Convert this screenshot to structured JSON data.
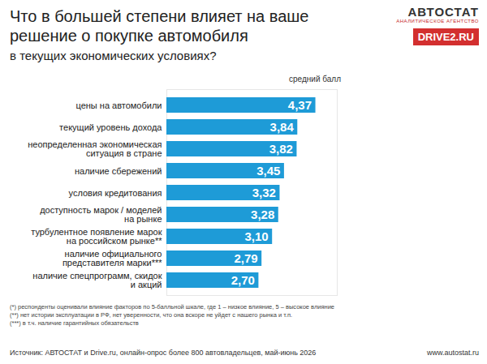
{
  "chart_data": {
    "type": "bar",
    "orientation": "horizontal",
    "title": "Что в большей степени влияет на ваше решение о покупке автомобиля",
    "subtitle": "в текущих экономических условиях?",
    "value_header": "средний балл",
    "categories": [
      "цены на автомобили",
      "текущий уровень дохода",
      "неопределенная экономическая ситуация в стране",
      "наличие сбережений",
      "условия кредитования",
      "доступность марок / моделей на рынке",
      "турбулентное появление марок на российском рынке**",
      "наличие официального представителя марки***",
      "наличие спецпрограмм, скидок и акций"
    ],
    "values": [
      4.37,
      3.84,
      3.82,
      3.45,
      3.32,
      3.28,
      3.1,
      2.79,
      2.7
    ],
    "value_labels": [
      "4,37",
      "3,84",
      "3,82",
      "3,45",
      "3,32",
      "3,28",
      "3,10",
      "2,79",
      "2,70"
    ],
    "data_labels": true,
    "color": "#1e9bd7",
    "xlim": [
      0,
      5
    ],
    "tick_labels": false,
    "grid": false,
    "footnotes": [
      "(*) респонденты оценивали влияние факторов по 5-балльной шкале, где 1 – низкое влияние, 5 – высокое влияние",
      "(**) нет истории эксплуатации в РФ, нет уверенности, что она вскоре не уйдет с нашего рынка и т.п.",
      "(***) в т.ч. наличие гарантийных обязательств"
    ],
    "source": "Источник: АВТОСТАТ и Drive.ru, онлайн-опрос более 800 автовладельцев, май-июнь 2026",
    "branding": [
      "АВТОСТАТ",
      "АНАЛИТИЧЕСКОЕ АГЕНТСТВО",
      "DRIVE2.RU",
      "www.autostat.ru"
    ]
  }
}
